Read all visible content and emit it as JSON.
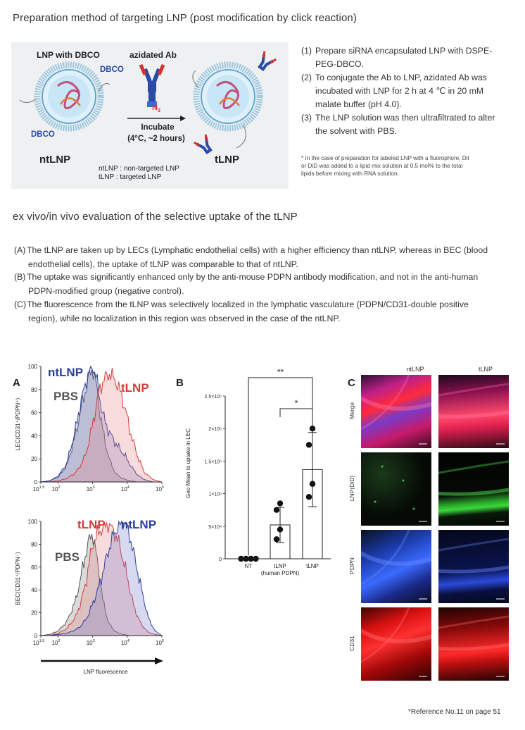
{
  "section1": {
    "title": "Preparation method of targeting LNP (post modification by click reaction)",
    "scheme": {
      "lnp_dbco_label": "LNP with DBCO",
      "azidated_ab_label": "azidated Ab",
      "dbco_top": "DBCO",
      "dbco_bottom": "DBCO",
      "n3": "N",
      "n3_sub": "3",
      "incubate": "Incubate",
      "conditions": "(4°C, ~2 hours)",
      "ntlnp": "ntLNP",
      "tlnp": "tLNP",
      "legend_ntlnp": "ntLNP : non-targeted LNP",
      "legend_tlnp": "tLNP : targeted LNP",
      "colors": {
        "background": "#eef0f2",
        "dbco": "#2b4aa8",
        "azide": "#d63030",
        "lipid": "#7fb8d8"
      }
    },
    "steps": [
      {
        "num": "(1)",
        "lines": [
          "Prepare siRNA encapsulated LNP with DSPE-",
          "PEG-DBCO."
        ]
      },
      {
        "num": "(2)",
        "lines": [
          "To conjugate the Ab to LNP, azidated Ab was",
          "incubated with LNP for 2 h at 4 ℃ in 20 mM",
          "malate buffer (pH 4.0)."
        ]
      },
      {
        "num": "(3)",
        "lines": [
          "The LNP solution was then ultrafiltrated to alter",
          "the solvent with PBS."
        ]
      }
    ],
    "footnote_lines": [
      "* In the case of preparation for labeled LNP with a fluorophore, DiI",
      "or DiD was added to a lipid mix solution at 0.5 mol% to the total",
      "lipids before mixing with RNA solution."
    ]
  },
  "section2": {
    "title": "ex vivo/in vivo evaluation of the selective uptake of the tLNP",
    "paragraphs": [
      {
        "label": "(A)",
        "lines": [
          "The tLNP are taken up by LECs (Lymphatic endothelial cells) with a higher efficiency than ntLNP, whereas in BEC (blood",
          "endothelial cells), the uptake of tLNP was comparable to that of ntLNP."
        ]
      },
      {
        "label": "(B)",
        "lines": [
          "The uptake was significantly enhanced only by the anti-mouse PDPN antibody modification, and not in the anti-human",
          "PDPN-modified group (negative control)."
        ]
      },
      {
        "label": "(C)",
        "lines": [
          "The fluorescence from the tLNP was selectively localized in the lymphatic vasculature (PDPN/CD31-double positive",
          "region), while no localization in this region was observed in the case of the ntLNP."
        ]
      }
    ]
  },
  "figA": {
    "panel_label": "A",
    "x_ticks": [
      "10",
      "10",
      "10",
      "10",
      "10"
    ],
    "x_tick_exps": [
      "1.5",
      "2",
      "3",
      "4",
      "5"
    ],
    "x_tick_values": [
      1.5,
      2,
      3,
      4,
      5
    ],
    "y_ticks": [
      "0",
      "20",
      "40",
      "60",
      "80",
      "100"
    ],
    "xlabel": "LNP fluorescence",
    "colors": {
      "pbs": "#555555",
      "ntlnp": "#2b3f9c",
      "tlnp": "#d63a3a"
    },
    "top": {
      "ylabel": "LEC(CD31⁺/PDPN⁺)",
      "label_ntlnp": "ntLNP",
      "label_pbs": "PBS",
      "label_tlnp": "tLNP"
    },
    "bottom": {
      "ylabel": "BEC(CD31⁺/PDPN⁻)",
      "label_tlnp": "tLNP",
      "label_ntlnp": "ntLNP",
      "label_pbs": "PBS"
    }
  },
  "chart_data": [
    {
      "type": "area",
      "panel": "A-top",
      "ylabel": "LEC(CD31⁺/PDPN⁺)",
      "xlabel": "LNP fluorescence",
      "x_scale": "log10",
      "xlim": [
        1.5,
        5
      ],
      "ylim": [
        0,
        100
      ],
      "x": [
        1.5,
        1.75,
        2.0,
        2.25,
        2.5,
        2.65,
        2.8,
        2.9,
        3.0,
        3.1,
        3.2,
        3.35,
        3.5,
        3.65,
        3.8,
        3.95,
        4.1,
        4.3,
        4.5,
        4.75,
        5.0
      ],
      "series": [
        {
          "name": "PBS",
          "values": [
            0,
            1,
            4,
            14,
            40,
            62,
            80,
            92,
            98,
            85,
            62,
            35,
            18,
            8,
            4,
            2,
            1,
            0,
            0,
            0,
            0
          ]
        },
        {
          "name": "ntLNP",
          "values": [
            0,
            1,
            5,
            16,
            45,
            68,
            86,
            96,
            100,
            92,
            72,
            52,
            42,
            34,
            28,
            22,
            14,
            6,
            2,
            0,
            0
          ]
        },
        {
          "name": "tLNP",
          "values": [
            0,
            0,
            1,
            3,
            8,
            14,
            24,
            36,
            50,
            66,
            80,
            90,
            94,
            88,
            78,
            62,
            42,
            22,
            8,
            2,
            0
          ]
        }
      ]
    },
    {
      "type": "area",
      "panel": "A-bottom",
      "ylabel": "BEC(CD31⁺/PDPN⁻)",
      "xlabel": "LNP fluorescence",
      "x_scale": "log10",
      "xlim": [
        1.5,
        5
      ],
      "ylim": [
        0,
        100
      ],
      "x": [
        1.5,
        1.75,
        2.0,
        2.25,
        2.5,
        2.65,
        2.8,
        2.9,
        3.0,
        3.15,
        3.3,
        3.45,
        3.6,
        3.75,
        3.9,
        4.05,
        4.2,
        4.4,
        4.6,
        4.8,
        5.0
      ],
      "series": [
        {
          "name": "PBS",
          "values": [
            0,
            1,
            4,
            12,
            30,
            50,
            72,
            84,
            90,
            62,
            30,
            12,
            5,
            2,
            1,
            0,
            0,
            0,
            0,
            0,
            0
          ]
        },
        {
          "name": "tLNP",
          "values": [
            0,
            0,
            2,
            6,
            16,
            28,
            46,
            64,
            80,
            90,
            94,
            98,
            92,
            82,
            64,
            44,
            24,
            10,
            3,
            1,
            0
          ]
        },
        {
          "name": "ntLNP",
          "values": [
            0,
            0,
            1,
            2,
            5,
            8,
            14,
            20,
            28,
            40,
            56,
            74,
            88,
            96,
            100,
            90,
            70,
            42,
            16,
            4,
            0
          ]
        }
      ]
    },
    {
      "type": "bar",
      "panel": "B",
      "ylabel": "Geo Mean to uptake in LEC",
      "categories": [
        "NT",
        "tLNP",
        "tLNP"
      ],
      "category_sublabels": [
        "",
        "(human PDPN)",
        ""
      ],
      "values": [
        0,
        52000,
        137000
      ],
      "error": [
        0,
        27000,
        57000
      ],
      "points": [
        [
          0,
          0,
          0,
          0
        ],
        [
          85000,
          75000,
          45000,
          30000
        ],
        [
          200000,
          175000,
          115000,
          95000
        ]
      ],
      "ylim": [
        0,
        250000
      ],
      "y_ticks": [
        "0",
        "5×10⁴",
        "1×10⁵",
        "1.5×10⁵",
        "2×10⁵",
        "2.5×10⁵"
      ],
      "y_tick_values": [
        0,
        50000,
        100000,
        150000,
        200000,
        250000
      ],
      "significance": [
        {
          "from": 0,
          "to": 2,
          "label": "**"
        },
        {
          "from": 1,
          "to": 2,
          "label": "*"
        }
      ]
    }
  ],
  "figB": {
    "panel_label": "B"
  },
  "figC": {
    "panel_label": "C",
    "columns": [
      "ntLNP",
      "tLNP"
    ],
    "rows": [
      "Merge",
      "LNP(DiD)",
      "PDPN",
      "CD31"
    ]
  },
  "reference": "*Reference No.11 on page 51"
}
